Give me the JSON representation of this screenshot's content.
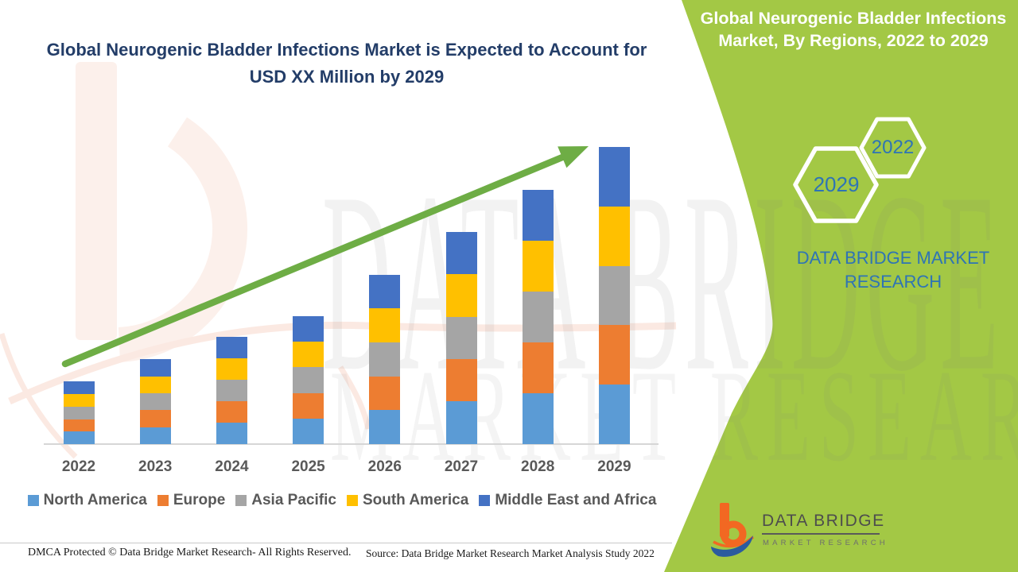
{
  "main_title": {
    "lines": [
      "Global Neurogenic Bladder Infections Market is Expected to Account for",
      "USD XX Million by 2029"
    ],
    "color": "#233D68"
  },
  "green_band": {
    "color": "#A3C845",
    "title_lines": [
      "Global Neurogenic Bladder Infections",
      "Market, By Regions, 2022 to 2029"
    ],
    "hexagon_large_label": "2029",
    "hexagon_small_label": "2022",
    "brand_lines": [
      "DATA BRIDGE MARKET",
      "RESEARCH"
    ],
    "accent_text_color": "#2E74B5"
  },
  "chart_data": {
    "type": "bar",
    "stacked": true,
    "title": "",
    "xlabel": "",
    "ylabel": "",
    "value_axis_visible": false,
    "gridlines": false,
    "legend_position": "bottom",
    "categories": [
      "2022",
      "2023",
      "2024",
      "2025",
      "2026",
      "2027",
      "2028",
      "2029"
    ],
    "series": [
      {
        "name": "North America",
        "color": "#5B9BD5",
        "values": [
          4.2,
          5.7,
          7.2,
          8.6,
          11.4,
          14.3,
          17.1,
          20.0
        ]
      },
      {
        "name": "Europe",
        "color": "#ED7D31",
        "values": [
          4.2,
          5.7,
          7.2,
          8.6,
          11.4,
          14.3,
          17.1,
          20.0
        ]
      },
      {
        "name": "Asia Pacific",
        "color": "#A5A5A5",
        "values": [
          4.2,
          5.7,
          7.2,
          8.6,
          11.4,
          14.3,
          17.1,
          20.0
        ]
      },
      {
        "name": "South America",
        "color": "#FFC000",
        "values": [
          4.2,
          5.7,
          7.2,
          8.6,
          11.4,
          14.3,
          17.1,
          20.0
        ]
      },
      {
        "name": "Middle East and Africa",
        "color": "#4472C4",
        "values": [
          4.2,
          5.7,
          7.2,
          8.6,
          11.4,
          14.3,
          17.1,
          20.0
        ]
      }
    ],
    "stack_order": "bottom-to-top as listed",
    "value_note": "Relative estimates read from bar heights; actual figures masked as 'USD XX Million' in the image",
    "ylim": [
      0,
      110
    ],
    "trend_arrow": {
      "present": true,
      "direction": "up",
      "color": "#6EAD45"
    }
  },
  "watermark": {
    "line1": "DATA BRIDGE",
    "line2": "MARKET RESEARCH"
  },
  "logo": {
    "title": "DATA BRIDGE",
    "subtitle": "MARKET RESEARCH",
    "orange": "#F26822",
    "blue": "#2B5B9E"
  },
  "footer": {
    "dmca": "DMCA Protected © Data Bridge Market Research- All Rights Reserved.",
    "source": "Source: Data Bridge Market Research Market Analysis Study 2022"
  }
}
